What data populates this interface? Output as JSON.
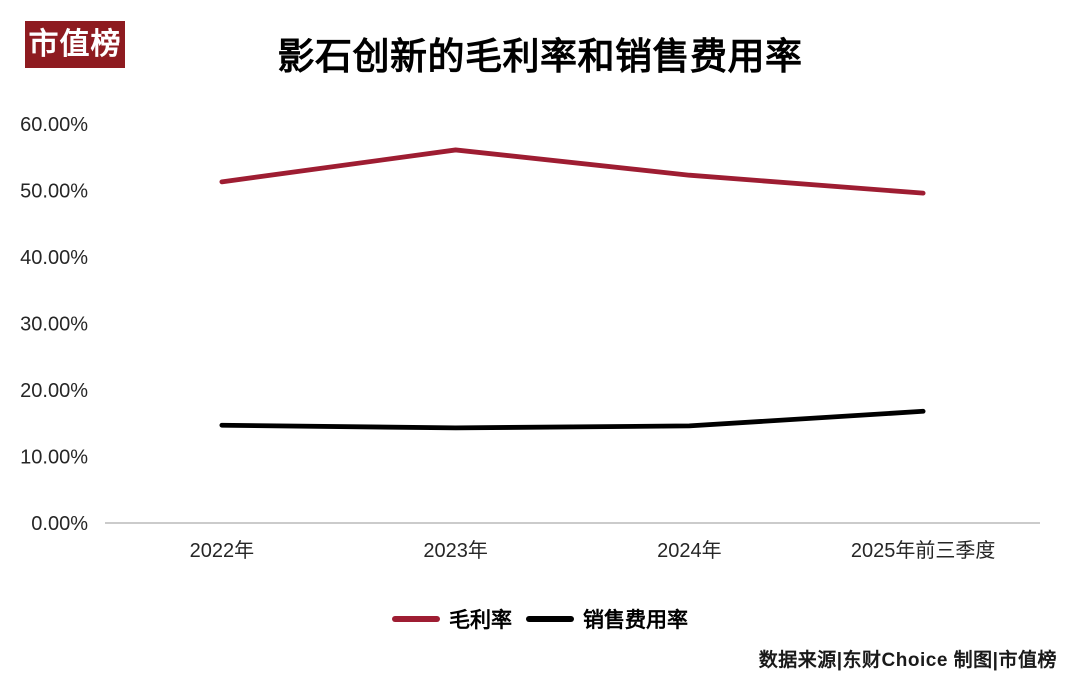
{
  "brand": {
    "logo_text": "市值榜",
    "logo_bg": "#8E1B20",
    "logo_fg": "#FFFFFF"
  },
  "header": {
    "title": "影石创新的毛利率和销售费用率"
  },
  "chart_data": {
    "type": "line",
    "title": "影石创新的毛利率和销售费用率",
    "categories": [
      "2022年",
      "2023年",
      "2024年",
      "2025年前三季度"
    ],
    "series": [
      {
        "name": "毛利率",
        "color": "#9E1D32",
        "values": [
          51.3,
          56.1,
          52.3,
          49.6
        ]
      },
      {
        "name": "销售费用率",
        "color": "#000000",
        "values": [
          14.7,
          14.3,
          14.6,
          16.8
        ]
      }
    ],
    "ylim": [
      0,
      60
    ],
    "y_tick_step": 10,
    "y_tick_labels": [
      "0.00%",
      "10.00%",
      "20.00%",
      "30.00%",
      "40.00%",
      "50.00%",
      "60.00%"
    ],
    "unit": "%",
    "grid": false,
    "legend_position": "bottom",
    "axis_color": "#CBCBCB",
    "tick_label_color": "#262626"
  },
  "footer": {
    "credit": "数据来源|东财Choice 制图|市值榜"
  }
}
